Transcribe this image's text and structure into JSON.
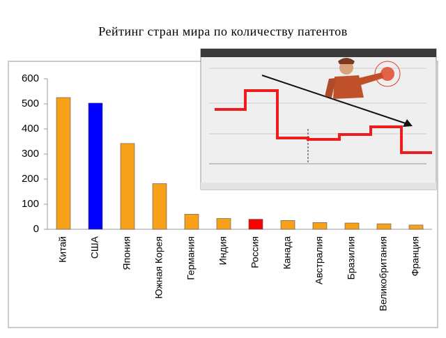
{
  "chart_data": {
    "type": "bar",
    "title": "Рейтинг стран мира по количеству патентов",
    "categories": [
      "Китай",
      "США",
      "Япония",
      "Южная Корея",
      "Германия",
      "Индия",
      "Россия",
      "Канада",
      "Австралия",
      "Бразилия",
      "Великобритания",
      "Франция"
    ],
    "values": [
      525,
      503,
      342,
      182,
      60,
      43,
      40,
      35,
      27,
      25,
      22,
      17
    ],
    "colors": [
      "#f7a11a",
      "#0000ff",
      "#f7a11a",
      "#f7a11a",
      "#f7a11a",
      "#f7a11a",
      "#ff0000",
      "#f7a11a",
      "#f7a11a",
      "#f7a11a",
      "#f7a11a",
      "#f7a11a"
    ],
    "ylim": [
      0,
      600
    ],
    "yticks": [
      0,
      100,
      200,
      300,
      400,
      500,
      600
    ],
    "grid": false
  }
}
